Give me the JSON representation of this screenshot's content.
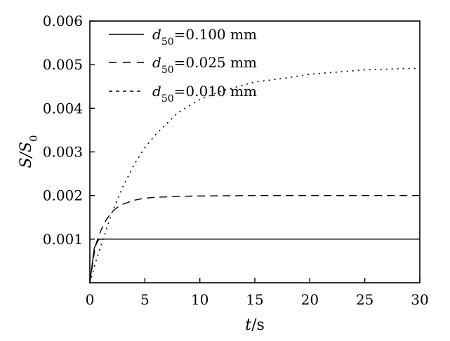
{
  "chart_data": {
    "type": "line",
    "xlabel": "t/s",
    "ylabel": "S/S0",
    "xlim": [
      0,
      30
    ],
    "ylim": [
      0,
      0.006
    ],
    "xticks": [
      "0",
      "5",
      "10",
      "15",
      "20",
      "25",
      "30"
    ],
    "yticks": [
      "0.001",
      "0.002",
      "0.003",
      "0.004",
      "0.005",
      "0.006"
    ],
    "grid": false,
    "legend_position": "top-left",
    "series": [
      {
        "name": "d50=0.100 mm",
        "style": "solid",
        "x": [
          0,
          0.4,
          0.8,
          1.0,
          5,
          10,
          15,
          20,
          25,
          30
        ],
        "y": [
          0,
          0.0008,
          0.00099,
          0.001,
          0.001,
          0.001,
          0.001,
          0.001,
          0.001,
          0.001
        ]
      },
      {
        "name": "d50=0.025 mm",
        "style": "dashed",
        "x": [
          0,
          0.5,
          1,
          1.5,
          2,
          2.5,
          3,
          4,
          5,
          6,
          8,
          10,
          15,
          20,
          25,
          30
        ],
        "y": [
          0,
          0.00085,
          0.0012,
          0.00145,
          0.00162,
          0.00173,
          0.0018,
          0.00189,
          0.00194,
          0.00196,
          0.00198,
          0.00199,
          0.002,
          0.002,
          0.002,
          0.002
        ]
      },
      {
        "name": "d50=0.010 mm",
        "style": "dotted",
        "x": [
          0,
          0.5,
          1,
          2,
          3,
          4,
          5,
          6,
          8,
          10,
          12,
          15,
          18,
          20,
          25,
          30
        ],
        "y": [
          0,
          0.00045,
          0.00085,
          0.0016,
          0.0022,
          0.0027,
          0.0031,
          0.0034,
          0.0039,
          0.0042,
          0.0044,
          0.0046,
          0.0047,
          0.00478,
          0.00488,
          0.00492
        ]
      }
    ]
  }
}
